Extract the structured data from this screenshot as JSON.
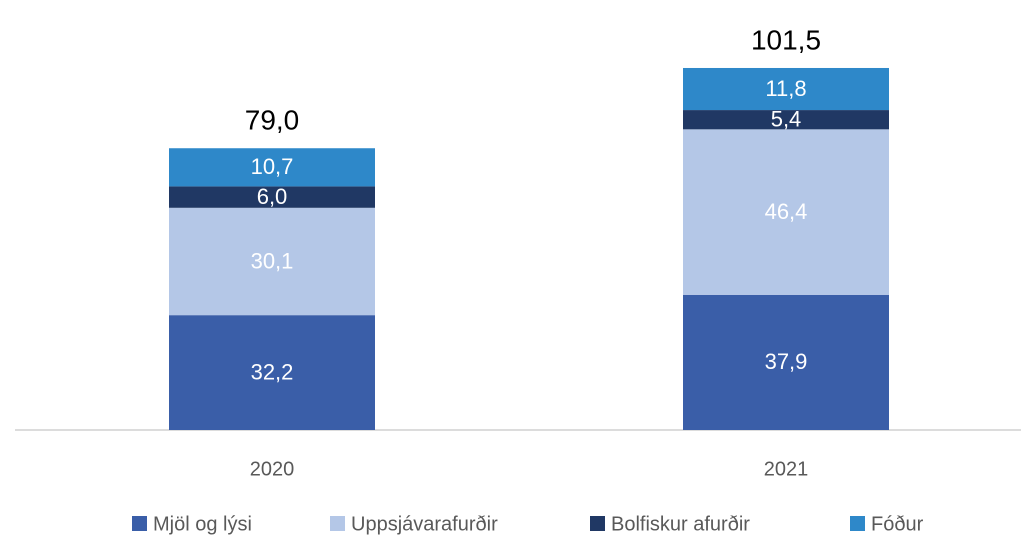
{
  "chart_data": {
    "type": "stacked_bar",
    "categories": [
      "2020",
      "2021"
    ],
    "series": [
      {
        "name": "Mjöl og lýsi",
        "color": "#3a5ea8",
        "values": [
          32.2,
          37.9
        ],
        "value_labels": [
          "32,2",
          "37,9"
        ]
      },
      {
        "name": "Uppsjávarafurðir",
        "color": "#b4c7e7",
        "values": [
          30.1,
          46.4
        ],
        "value_labels": [
          "30,1",
          "46,4"
        ]
      },
      {
        "name": "Bolfiskur afurðir",
        "color": "#203864",
        "values": [
          6.0,
          5.4
        ],
        "value_labels": [
          "6,0",
          "5,4"
        ]
      },
      {
        "name": "Fóður",
        "color": "#2e88c9",
        "values": [
          10.7,
          11.8
        ],
        "value_labels": [
          "10,7",
          "11,8"
        ]
      }
    ],
    "totals": [
      79.0,
      101.5
    ],
    "total_labels": [
      "79,0",
      "101,5"
    ],
    "ylim": [
      0,
      120
    ],
    "legend": "bottom"
  }
}
